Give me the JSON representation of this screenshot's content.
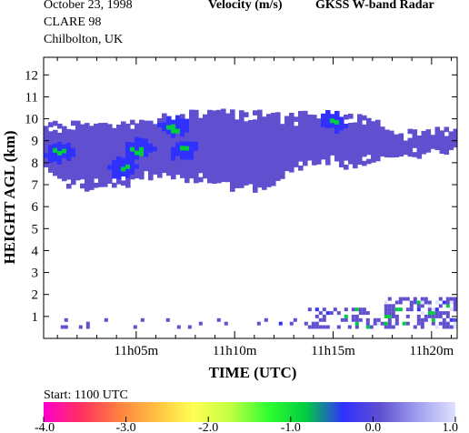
{
  "header": {
    "date": "October  23, 1998",
    "campaign": "CLARE 98",
    "location": "Chilbolton, UK",
    "quantity": "Velocity (m/s)",
    "instrument": "GKSS  W-band Radar"
  },
  "start_label": "Start: 1100 UTC",
  "chart_data": {
    "type": "heatmap",
    "title": "Velocity (m/s)",
    "xlabel": "TIME (UTC)",
    "ylabel": "HEIGHT AGL (km)",
    "x_unit": "minutes after 1100 UTC",
    "xlim": [
      0.3,
      21.3
    ],
    "ylim": [
      0,
      12.8
    ],
    "x_ticks": [
      {
        "value": 5,
        "label": "11h05m"
      },
      {
        "value": 10,
        "label": "11h10m"
      },
      {
        "value": 15,
        "label": "11h15m"
      },
      {
        "value": 20,
        "label": "11h20m"
      }
    ],
    "y_ticks": [
      1,
      2,
      3,
      4,
      5,
      6,
      7,
      8,
      9,
      10,
      11,
      12
    ],
    "colorbar": {
      "min": -4.0,
      "max": 1.0,
      "tick_labels": [
        "-4.0",
        "-3.0",
        "-2.0",
        "-1.0",
        "0.0",
        "1.0"
      ],
      "tick_values": [
        -4,
        -3,
        -2,
        -1,
        0,
        1
      ],
      "colors": [
        "#ff00cc",
        "#ff3060",
        "#ff8040",
        "#ffc040",
        "#ffff55",
        "#c0ff40",
        "#30ff30",
        "#00cc40",
        "#3030ff",
        "#6050d0",
        "#a0a0f0",
        "#e0e0ff"
      ]
    },
    "cloud_main": {
      "x_start": 0.3,
      "x_end": 18.6,
      "step": 0.6,
      "top": [
        9.8,
        9.8,
        9.8,
        9.8,
        9.8,
        9.8,
        9.8,
        9.9,
        9.9,
        10.0,
        10.2,
        10.3,
        10.3,
        10.3,
        10.3,
        10.4,
        10.3,
        10.3,
        10.3,
        10.3,
        10.2,
        10.2,
        10.3,
        10.3,
        10.3,
        10.2,
        10.1,
        10.1,
        9.9,
        9.5,
        9.2,
        8.9
      ],
      "bottom": [
        7.8,
        7.4,
        7.1,
        6.9,
        6.9,
        7.0,
        7.1,
        7.2,
        7.4,
        7.5,
        7.5,
        7.4,
        7.3,
        7.2,
        7.1,
        7.0,
        6.9,
        6.8,
        6.9,
        7.0,
        7.5,
        7.8,
        7.9,
        8.0,
        8.0,
        7.9,
        8.0,
        8.1,
        8.2,
        8.4,
        8.5,
        8.6
      ],
      "mean_velocity": 0.0
    },
    "cloud_east": {
      "x_start": 17.4,
      "x_end": 21.3,
      "step": 0.6,
      "top": [
        8.9,
        9.3,
        9.4,
        9.5,
        9.6,
        9.6,
        9.5
      ],
      "bottom": [
        8.4,
        8.3,
        8.3,
        8.4,
        8.5,
        8.6,
        8.7
      ],
      "mean_velocity": 0.0
    },
    "updraft_cells": [
      {
        "x": 1.0,
        "y": 8.6,
        "v": -0.8
      },
      {
        "x": 4.3,
        "y": 7.9,
        "v": -0.9
      },
      {
        "x": 5.0,
        "y": 8.7,
        "v": -0.8
      },
      {
        "x": 6.8,
        "y": 9.7,
        "v": -0.8
      },
      {
        "x": 7.3,
        "y": 8.7,
        "v": -0.8
      },
      {
        "x": 14.9,
        "y": 10.0,
        "v": -0.7
      }
    ],
    "low_level_echo": {
      "x_start": 0.8,
      "x_end": 21.3,
      "height_range_km": [
        0.6,
        2.0
      ],
      "mean_velocity": 0.0
    }
  }
}
